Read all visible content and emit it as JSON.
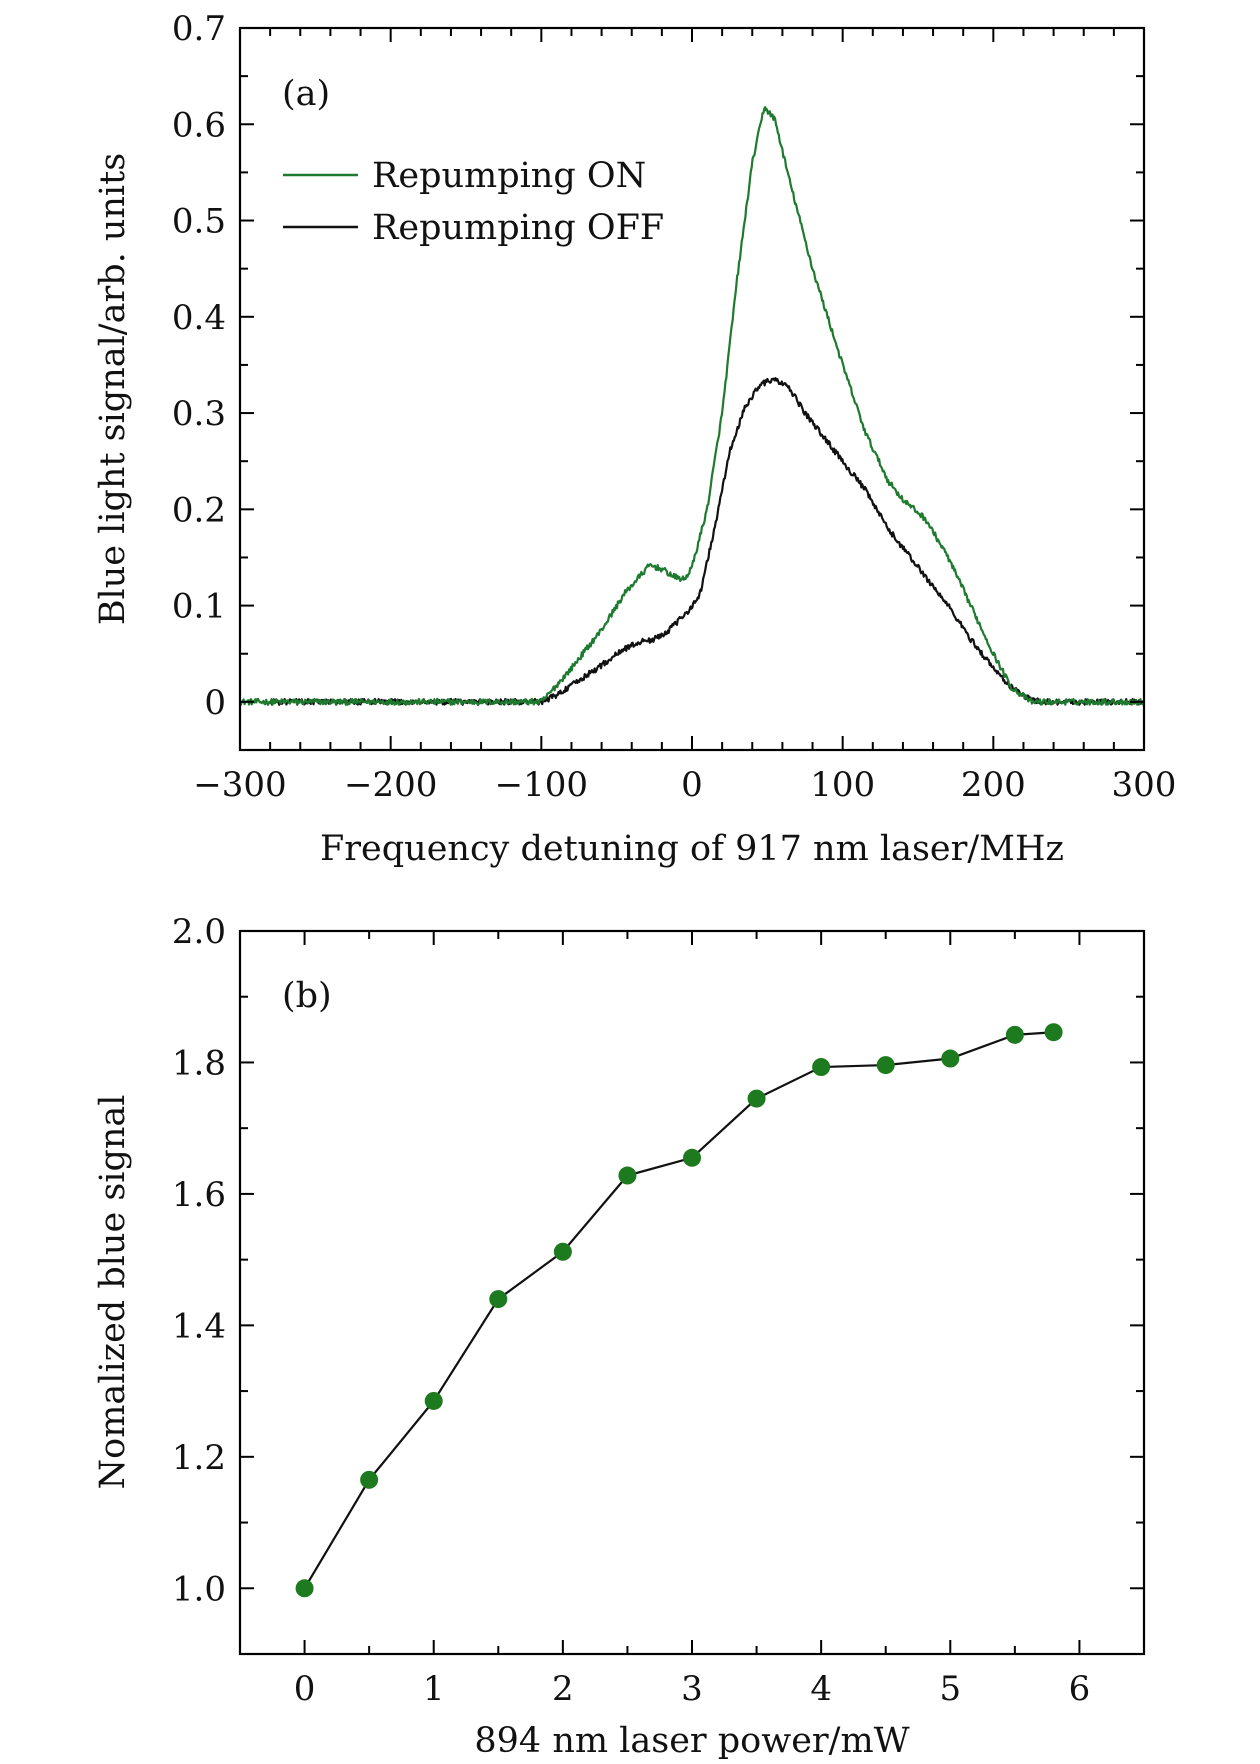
{
  "chart_data": [
    {
      "type": "line",
      "panel_label": "(a)",
      "xlabel": "Frequency detuning of  917 nm laser/MHz",
      "ylabel": "Blue light signal/arb. units",
      "xlim": [
        -300,
        300
      ],
      "ylim": [
        -0.05,
        0.7
      ],
      "xticks": [
        -300,
        -200,
        -100,
        0,
        100,
        200,
        300
      ],
      "xtick_labels": [
        "−300",
        "−200",
        "−100",
        "0",
        "100",
        "200",
        "300"
      ],
      "yticks": [
        0,
        0.1,
        0.2,
        0.3,
        0.4,
        0.5,
        0.6,
        0.7
      ],
      "ytick_labels": [
        "0",
        "0.1",
        "0.2",
        "0.3",
        "0.4",
        "0.5",
        "0.6",
        "0.7"
      ],
      "grid": false,
      "legend_position": "upper-left",
      "series": [
        {
          "name": "Repumping ON",
          "color": "#1e7a2e",
          "points": [
            [
              -300,
              0.0
            ],
            [
              -100,
              0.0
            ],
            [
              -95,
              0.008
            ],
            [
              -80,
              0.035
            ],
            [
              -60,
              0.075
            ],
            [
              -45,
              0.112
            ],
            [
              -35,
              0.13
            ],
            [
              -28,
              0.142
            ],
            [
              -20,
              0.138
            ],
            [
              -12,
              0.13
            ],
            [
              -5,
              0.127
            ],
            [
              0,
              0.14
            ],
            [
              10,
              0.2
            ],
            [
              20,
              0.3
            ],
            [
              30,
              0.44
            ],
            [
              40,
              0.56
            ],
            [
              48,
              0.618
            ],
            [
              55,
              0.605
            ],
            [
              65,
              0.54
            ],
            [
              80,
              0.45
            ],
            [
              100,
              0.35
            ],
            [
              115,
              0.28
            ],
            [
              130,
              0.23
            ],
            [
              140,
              0.21
            ],
            [
              155,
              0.19
            ],
            [
              170,
              0.15
            ],
            [
              185,
              0.1
            ],
            [
              200,
              0.05
            ],
            [
              212,
              0.015
            ],
            [
              225,
              0.0
            ],
            [
              300,
              0.0
            ]
          ]
        },
        {
          "name": "Repumping OFF",
          "color": "#111111",
          "points": [
            [
              -280,
              0.0
            ],
            [
              -100,
              0.0
            ],
            [
              -90,
              0.007
            ],
            [
              -75,
              0.022
            ],
            [
              -60,
              0.038
            ],
            [
              -45,
              0.055
            ],
            [
              -35,
              0.062
            ],
            [
              -25,
              0.065
            ],
            [
              -15,
              0.075
            ],
            [
              -5,
              0.09
            ],
            [
              5,
              0.11
            ],
            [
              15,
              0.18
            ],
            [
              25,
              0.26
            ],
            [
              35,
              0.305
            ],
            [
              45,
              0.33
            ],
            [
              55,
              0.335
            ],
            [
              65,
              0.325
            ],
            [
              75,
              0.3
            ],
            [
              90,
              0.27
            ],
            [
              100,
              0.25
            ],
            [
              115,
              0.22
            ],
            [
              130,
              0.18
            ],
            [
              150,
              0.14
            ],
            [
              170,
              0.1
            ],
            [
              185,
              0.065
            ],
            [
              200,
              0.035
            ],
            [
              212,
              0.015
            ],
            [
              225,
              0.002
            ],
            [
              235,
              0.0
            ],
            [
              300,
              0.0
            ]
          ]
        }
      ]
    },
    {
      "type": "line",
      "panel_label": "(b)",
      "xlabel": "894 nm laser power/mW",
      "ylabel": "Nomalized blue signal",
      "xlim": [
        -0.5,
        6.5
      ],
      "ylim": [
        0.9,
        2.0
      ],
      "xticks": [
        0,
        1,
        2,
        3,
        4,
        5,
        6
      ],
      "xtick_labels": [
        "0",
        "1",
        "2",
        "3",
        "4",
        "5",
        "6"
      ],
      "yticks": [
        1.0,
        1.2,
        1.4,
        1.6,
        1.8,
        2.0
      ],
      "ytick_labels": [
        "1.0",
        "1.2",
        "1.4",
        "1.6",
        "1.8",
        "2.0"
      ],
      "grid": false,
      "markers": true,
      "marker_color": "#1e7a1e",
      "line_color": "#111111",
      "x": [
        0,
        0.5,
        1.0,
        1.5,
        2.0,
        2.5,
        3.0,
        3.5,
        4.0,
        4.5,
        5.0,
        5.5,
        5.8
      ],
      "y": [
        1.0,
        1.165,
        1.285,
        1.44,
        1.512,
        1.628,
        1.655,
        1.745,
        1.793,
        1.796,
        1.806,
        1.842,
        1.846
      ]
    }
  ]
}
